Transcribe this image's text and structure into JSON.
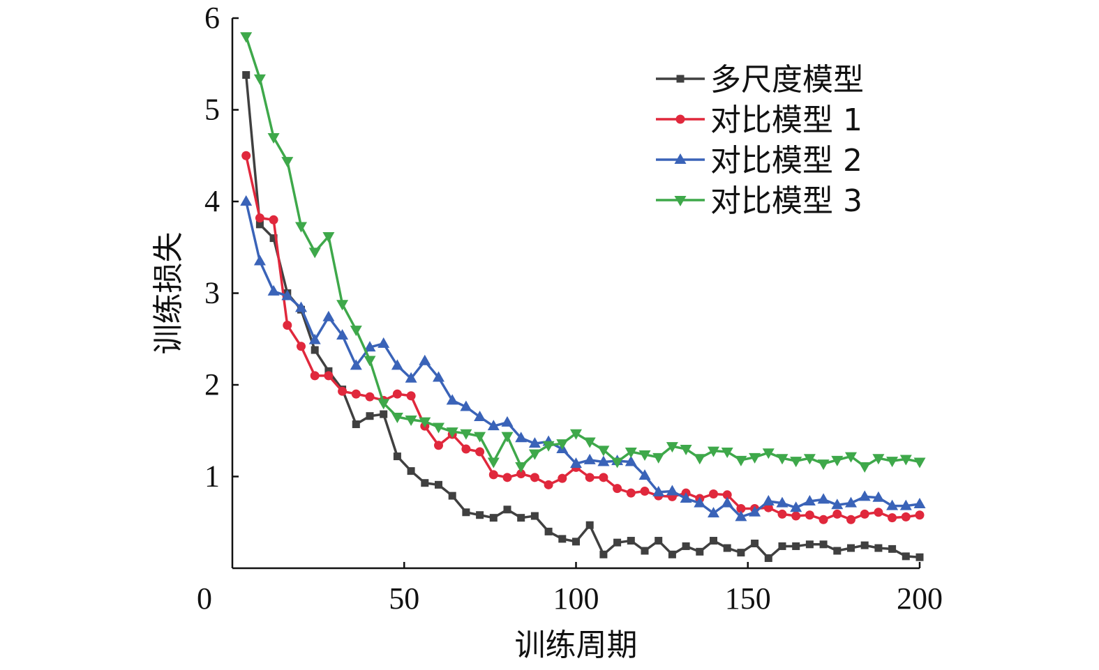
{
  "chart_data": {
    "type": "line",
    "title": "",
    "xlabel": "训练周期",
    "ylabel": "训练损失",
    "xlim": [
      0,
      200
    ],
    "ylim": [
      0,
      6
    ],
    "x_ticks": [
      "0",
      "50",
      "100",
      "150",
      "200"
    ],
    "y_ticks": [
      "1",
      "2",
      "3",
      "4",
      "5",
      "6"
    ],
    "legend_position": "top-right",
    "x": [
      4,
      8,
      12,
      16,
      20,
      24,
      28,
      32,
      36,
      40,
      44,
      48,
      52,
      56,
      60,
      64,
      68,
      72,
      76,
      80,
      84,
      88,
      92,
      96,
      100,
      104,
      108,
      112,
      116,
      120,
      124,
      128,
      132,
      136,
      140,
      144,
      148,
      152,
      156,
      160,
      164,
      168,
      172,
      176,
      180,
      184,
      188,
      192,
      196,
      200
    ],
    "series": [
      {
        "name": "多尺度模型",
        "color": "#404040",
        "marker": "square",
        "values": [
          5.38,
          3.75,
          3.6,
          3.0,
          2.82,
          2.38,
          2.15,
          1.95,
          1.57,
          1.66,
          1.68,
          1.22,
          1.06,
          0.93,
          0.91,
          0.79,
          0.61,
          0.58,
          0.55,
          0.64,
          0.55,
          0.57,
          0.4,
          0.32,
          0.29,
          0.47,
          0.15,
          0.28,
          0.3,
          0.19,
          0.3,
          0.15,
          0.24,
          0.18,
          0.3,
          0.22,
          0.17,
          0.27,
          0.11,
          0.24,
          0.24,
          0.26,
          0.26,
          0.19,
          0.22,
          0.25,
          0.22,
          0.21,
          0.13,
          0.12
        ]
      },
      {
        "name": "对比模型 1",
        "color": "#e0283c",
        "marker": "circle",
        "values": [
          4.5,
          3.82,
          3.8,
          2.65,
          2.42,
          2.1,
          2.1,
          1.93,
          1.9,
          1.87,
          1.83,
          1.9,
          1.88,
          1.55,
          1.34,
          1.46,
          1.3,
          1.27,
          1.02,
          0.99,
          1.03,
          0.99,
          0.91,
          0.98,
          1.1,
          0.99,
          0.99,
          0.87,
          0.82,
          0.84,
          0.79,
          0.78,
          0.82,
          0.76,
          0.81,
          0.8,
          0.65,
          0.65,
          0.66,
          0.59,
          0.57,
          0.58,
          0.53,
          0.59,
          0.53,
          0.59,
          0.61,
          0.55,
          0.56,
          0.58
        ]
      },
      {
        "name": "对比模型 2",
        "color": "#3a63b8",
        "marker": "triangle-up",
        "values": [
          4.0,
          3.35,
          3.02,
          2.97,
          2.84,
          2.49,
          2.74,
          2.54,
          2.21,
          2.41,
          2.45,
          2.21,
          2.07,
          2.26,
          2.08,
          1.83,
          1.76,
          1.65,
          1.55,
          1.59,
          1.42,
          1.36,
          1.38,
          1.3,
          1.14,
          1.18,
          1.16,
          1.17,
          1.16,
          1.01,
          0.83,
          0.84,
          0.76,
          0.71,
          0.6,
          0.71,
          0.56,
          0.61,
          0.73,
          0.71,
          0.66,
          0.73,
          0.75,
          0.69,
          0.71,
          0.78,
          0.77,
          0.68,
          0.68,
          0.7
        ]
      },
      {
        "name": "对比模型 3",
        "color": "#3ea84a",
        "marker": "triangle-down",
        "values": [
          5.8,
          5.34,
          4.7,
          4.44,
          3.73,
          3.45,
          3.62,
          2.88,
          2.6,
          2.27,
          1.8,
          1.65,
          1.62,
          1.6,
          1.54,
          1.49,
          1.47,
          1.44,
          1.16,
          1.44,
          1.11,
          1.25,
          1.34,
          1.36,
          1.47,
          1.38,
          1.29,
          1.16,
          1.27,
          1.24,
          1.21,
          1.33,
          1.3,
          1.2,
          1.28,
          1.27,
          1.18,
          1.21,
          1.26,
          1.2,
          1.17,
          1.2,
          1.14,
          1.18,
          1.22,
          1.11,
          1.2,
          1.17,
          1.19,
          1.16
        ]
      }
    ]
  }
}
